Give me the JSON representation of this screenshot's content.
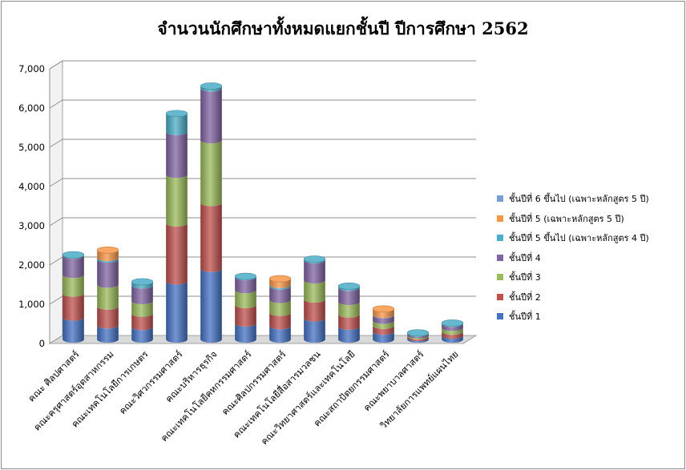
{
  "chart_data": {
    "type": "bar",
    "stacked": true,
    "three_d": true,
    "title": "จำนวนนักศึกษาทั้งหมดแยกชั้นปี  ปีการศึกษา 2562",
    "xlabel": "",
    "ylabel": "",
    "ylim": [
      0,
      7000
    ],
    "yticks": [
      0,
      1000,
      2000,
      3000,
      4000,
      5000,
      6000,
      7000
    ],
    "ytick_labels": [
      "0",
      "1,000",
      "2,000",
      "3,000",
      "4,000",
      "5,000",
      "6,000",
      "7,000"
    ],
    "grid": true,
    "legend_position": "right",
    "categories": [
      "คณะ ศิลปศาสตร์",
      "คณะครุศาสตร์อุตสาหกรรม",
      "คณะเทคโนโลยีการเกษตร",
      "คณะวิศวกรรมศาสตร์",
      "คณะบริหารธุรกิจ",
      "คณะเทคโนโลยีคหกรรมศาสตร์",
      "คณะศิลปกรรมศาสตร์",
      "คณะเทคโนโลยีสื่อสารมวลชน",
      "คณะวิทยาศาสตร์และเทคโนโลยี",
      "คณะสถาปัตยกรรมศาสตร์",
      "คณะพยาบาลศาสตร์",
      "วิทยาลัยการแพทย์แผนไทย"
    ],
    "series": [
      {
        "name": "ชั้นปีที่ 1",
        "color": "#4472c4",
        "values": [
          560,
          360,
          320,
          1480,
          1800,
          410,
          340,
          540,
          330,
          200,
          40,
          100
        ]
      },
      {
        "name": "ชั้นปีที่ 2",
        "color": "#c0504d",
        "values": [
          610,
          480,
          340,
          1480,
          1680,
          470,
          340,
          480,
          310,
          150,
          40,
          100
        ]
      },
      {
        "name": "ชั้นปีที่ 3",
        "color": "#9bbb59",
        "values": [
          480,
          560,
          320,
          1240,
          1600,
          380,
          330,
          490,
          320,
          130,
          30,
          100
        ]
      },
      {
        "name": "ชั้นปีที่ 4",
        "color": "#8064a2",
        "values": [
          490,
          640,
          400,
          1090,
          1320,
          330,
          340,
          510,
          360,
          140,
          40,
          100
        ]
      },
      {
        "name": "ชั้นปีที่ 5 ขึ้นไป  (เฉพาะหลักสูตร 4 ปี)",
        "color": "#4bacc6",
        "values": [
          20,
          40,
          90,
          470,
          60,
          20,
          40,
          30,
          40,
          10,
          20,
          20
        ]
      },
      {
        "name": "ชั้นปีที่ 5 (เฉพาะหลักสูตร 5 ปี)",
        "color": "#f79646",
        "values": [
          0,
          200,
          0,
          0,
          0,
          0,
          160,
          0,
          0,
          150,
          0,
          0
        ]
      },
      {
        "name": "ชั้นปีที่ 6 ขึ้นไป  (เฉพาะหลักสูตร 5 ปี)",
        "color": "#7a9cd3",
        "values": [
          0,
          0,
          0,
          0,
          0,
          0,
          0,
          0,
          0,
          0,
          0,
          0
        ]
      }
    ],
    "legend_order": [
      6,
      5,
      4,
      3,
      2,
      1,
      0
    ]
  }
}
